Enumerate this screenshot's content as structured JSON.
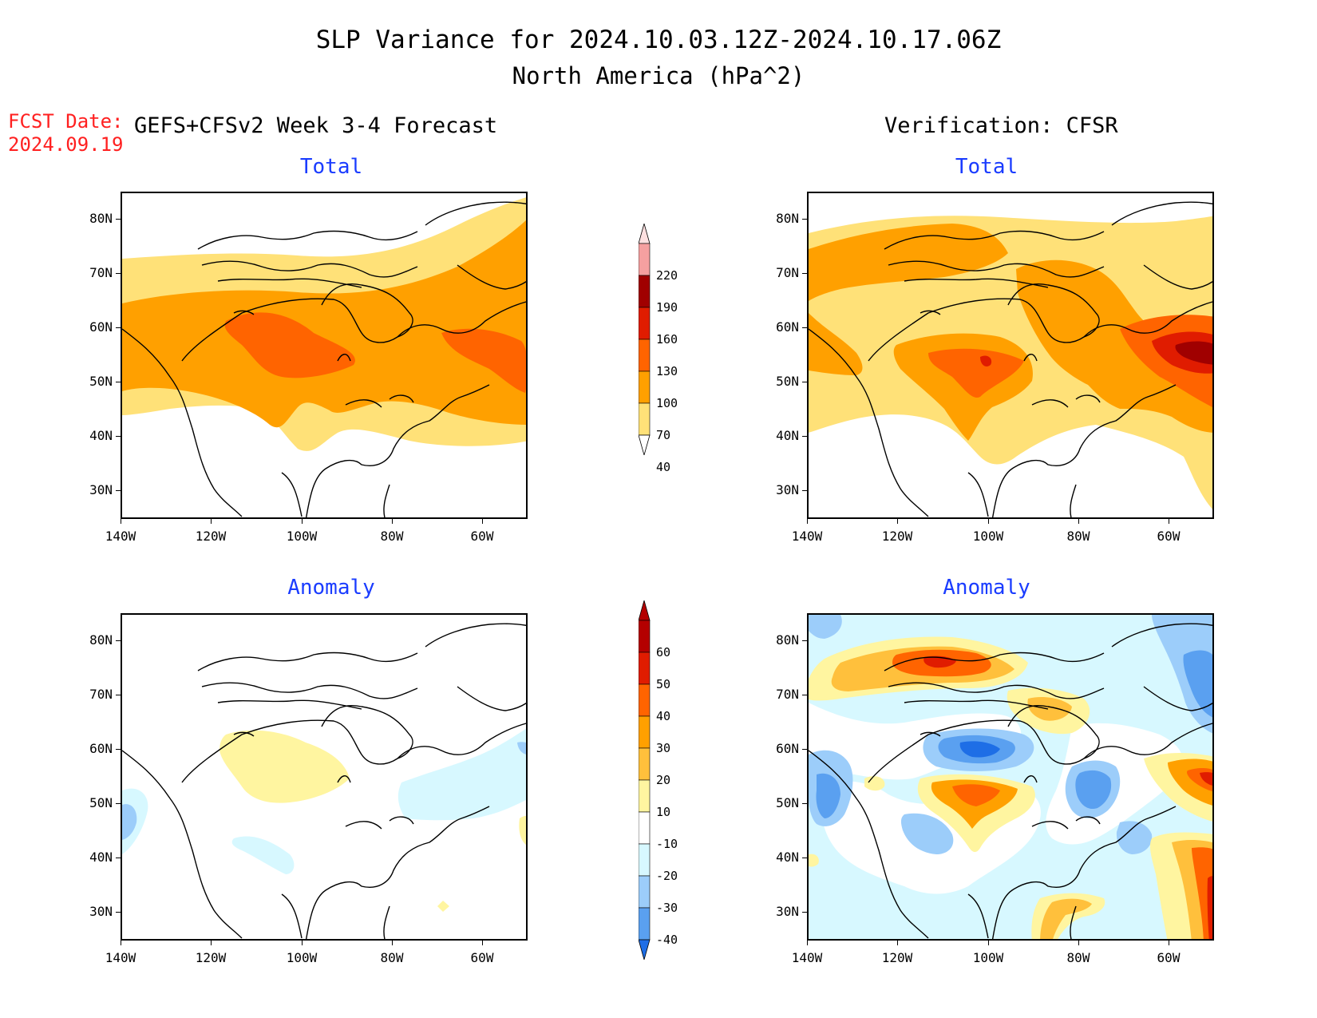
{
  "title": "SLP Variance for 2024.10.03.12Z-2024.10.17.06Z",
  "subtitle": "North America (hPa^2)",
  "fcst_date_label": "FCST Date:",
  "fcst_date_value": "2024.09.19",
  "left_header": "GEFS+CFSv2 Week 3-4 Forecast",
  "right_header": "Verification: CFSR",
  "panel_titles": {
    "total": "Total",
    "anomaly": "Anomaly"
  },
  "lat_labels": [
    "80N",
    "70N",
    "60N",
    "50N",
    "40N",
    "30N"
  ],
  "lon_labels": [
    "140W",
    "120W",
    "100W",
    "80W",
    "60W"
  ],
  "total_colorbar": {
    "levels": [
      "220",
      "190",
      "160",
      "130",
      "100",
      "70",
      "40"
    ],
    "colors": [
      "#f5a0a0",
      "#a00000",
      "#e01c00",
      "#ff6400",
      "#ffa000",
      "#ffe178"
    ]
  },
  "anomaly_colorbar": {
    "levels": [
      "60",
      "50",
      "40",
      "30",
      "20",
      "10",
      "-10",
      "-20",
      "-30",
      "-40"
    ],
    "colors": [
      "#b40000",
      "#e01c00",
      "#ff6400",
      "#ffa000",
      "#ffc03c",
      "#fff5a0",
      "#ffffff",
      "#d7f8ff",
      "#9ccdfa",
      "#5aa0f0",
      "#1e6ee6"
    ]
  },
  "map_extent": {
    "lon_min": -140,
    "lon_max": -50,
    "lat_min": 25,
    "lat_max": 85
  }
}
